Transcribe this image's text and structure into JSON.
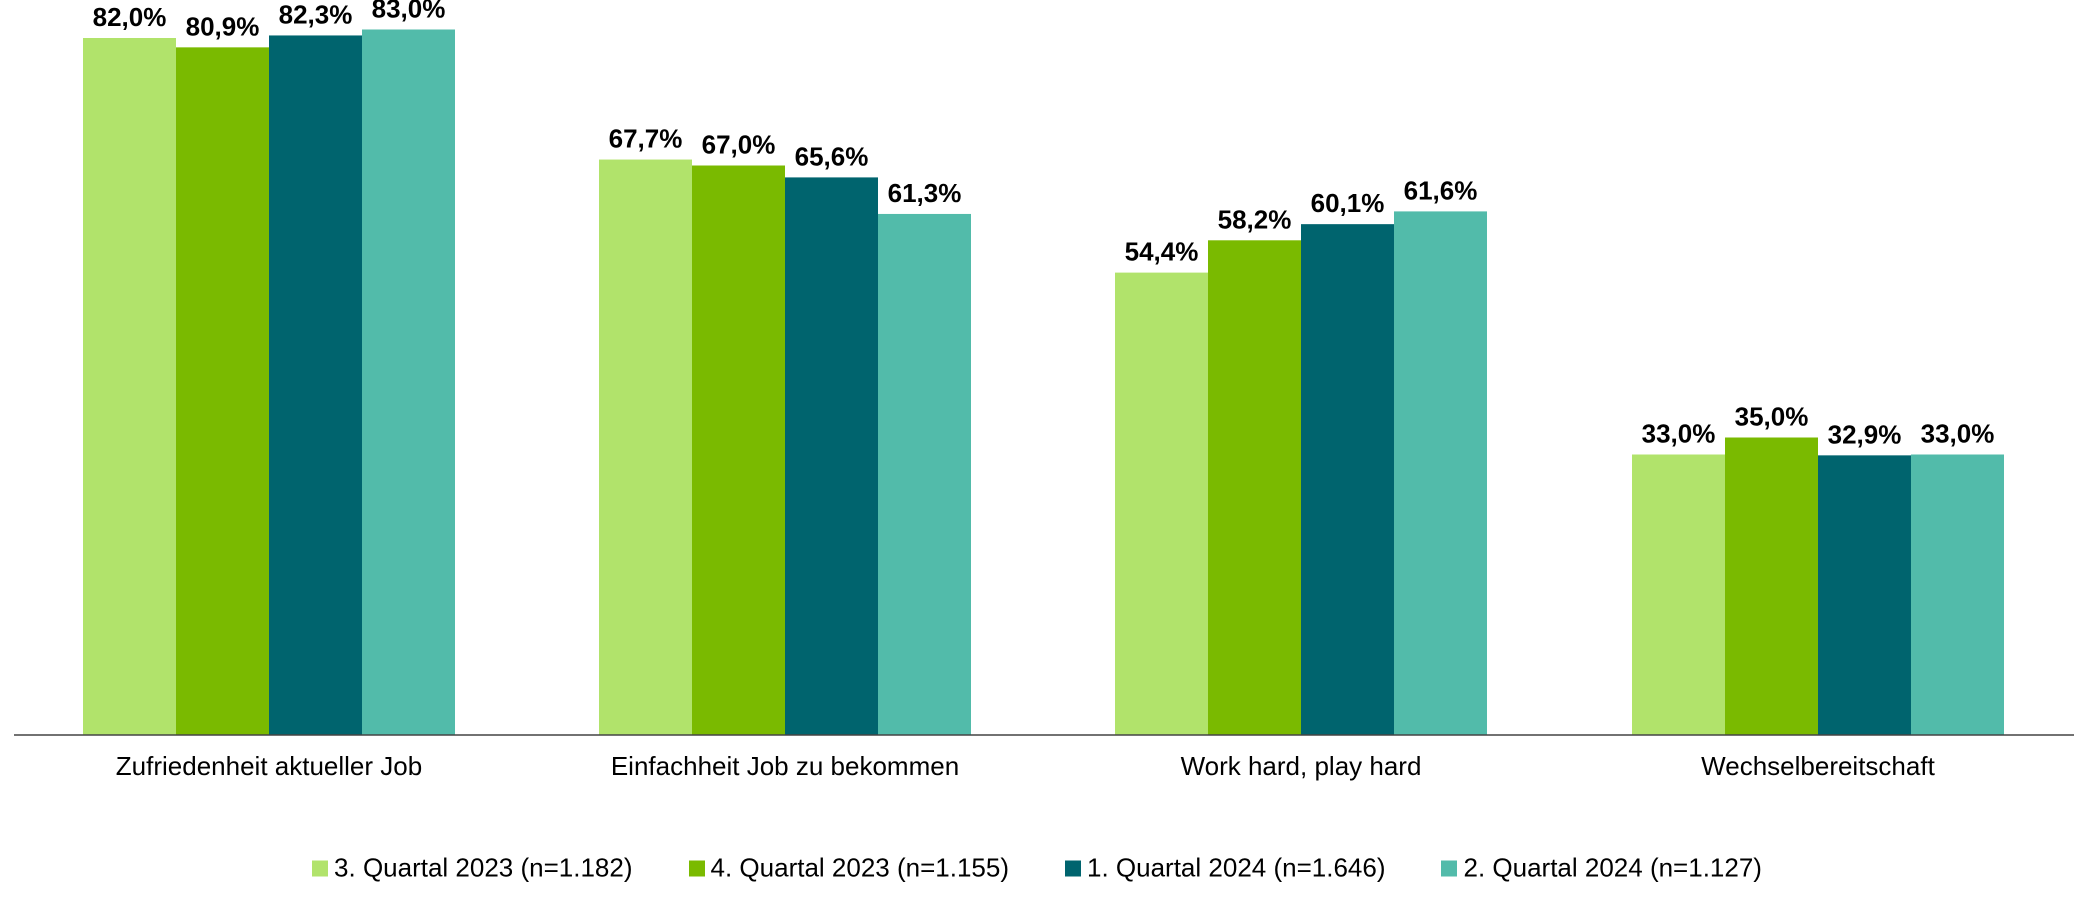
{
  "chart_data": {
    "type": "bar",
    "categories": [
      "Zufriedenheit aktueller Job",
      "Einfachheit Job zu bekommen",
      "Work hard, play hard",
      "Wechselbereitschaft"
    ],
    "series": [
      {
        "name": "3. Quartal 2023 (n=1.182)",
        "color": "#b1e36b",
        "values": [
          82.0,
          67.7,
          54.4,
          33.0
        ],
        "labels": [
          "82,0%",
          "67,7%",
          "54,4%",
          "33,0%"
        ]
      },
      {
        "name": "4. Quartal 2023 (n=1.155)",
        "color": "#7aba00",
        "values": [
          80.9,
          67.0,
          58.2,
          35.0
        ],
        "labels": [
          "80,9%",
          "67,0%",
          "58,2%",
          "35,0%"
        ]
      },
      {
        "name": "1. Quartal 2024 (n=1.646)",
        "color": "#00646e",
        "values": [
          82.3,
          65.6,
          60.1,
          32.9
        ],
        "labels": [
          "82,3%",
          "65,6%",
          "60,1%",
          "32,9%"
        ]
      },
      {
        "name": "2. Quartal 2024 (n=1.127)",
        "color": "#52bbaa",
        "values": [
          83.0,
          61.3,
          61.6,
          33.0
        ],
        "labels": [
          "83,0%",
          "61,3%",
          "61,6%",
          "33,0%"
        ]
      }
    ],
    "ylim": [
      0,
      100
    ],
    "grid": false,
    "legend_position": "bottom"
  }
}
